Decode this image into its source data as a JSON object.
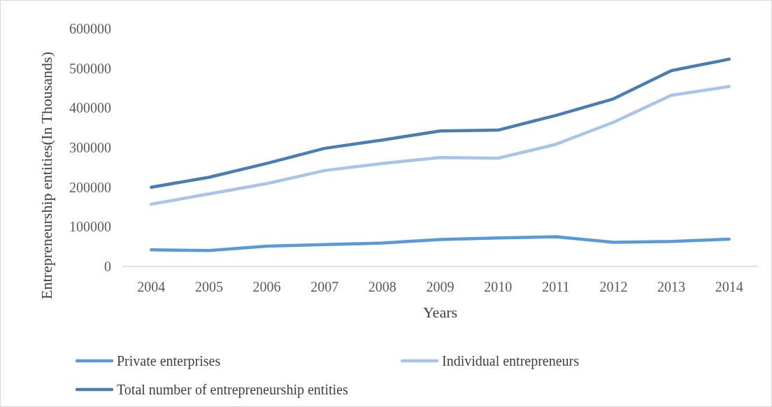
{
  "chart_data": {
    "type": "line",
    "xlabel": "Years",
    "ylabel": "Entrepreneurship entities(In Thousands)",
    "categories": [
      "2004",
      "2005",
      "2006",
      "2007",
      "2008",
      "2009",
      "2010",
      "2011",
      "2012",
      "2013",
      "2014"
    ],
    "series": [
      {
        "name": "Private enterprises",
        "color": "#5b9bd5",
        "values": [
          42000,
          40000,
          51000,
          55000,
          59000,
          68000,
          72000,
          75000,
          61000,
          63000,
          69000
        ]
      },
      {
        "name": "Individual entrepreneurs",
        "color": "#a9c4e6",
        "values": [
          157000,
          183000,
          209000,
          242000,
          260000,
          275000,
          273000,
          308000,
          364000,
          432000,
          454000
        ]
      },
      {
        "name": "Total number of entrepreneurship entities",
        "color": "#4a7eb0",
        "values": [
          200000,
          225000,
          260000,
          298000,
          319000,
          342000,
          344000,
          381000,
          423000,
          494000,
          523000
        ]
      }
    ],
    "ylim": [
      0,
      600000
    ],
    "yticks": [
      0,
      100000,
      200000,
      300000,
      400000,
      500000,
      600000
    ],
    "grid": false,
    "legend": "bottom",
    "marker": "none",
    "line_style": "solid"
  }
}
